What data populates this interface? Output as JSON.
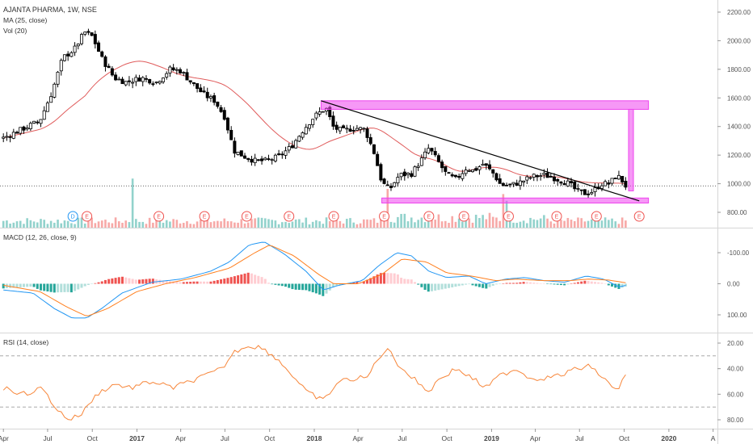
{
  "header": {
    "symbol": "AJANTA PHARMA, 1W, NSE",
    "ma_label": "MA (25, close)",
    "vol_label": "Vol (20)",
    "macd_label": "MACD (12, 26, close, 9)",
    "rsi_label": "RSI (14, close)"
  },
  "colors": {
    "up": "#26a69a",
    "down": "#ef5350",
    "candle": "#000000",
    "ma": "#e05c5c",
    "macd": "#2196f3",
    "signal": "#ff7f1e",
    "rsi": "#f7863a",
    "rsi_band": "#f0e3ff",
    "drawing": "#ee44ee",
    "trendline": "#000000"
  },
  "chart_data": [
    {
      "type": "candlestick",
      "title": "AJANTA PHARMA, 1W, NSE",
      "price_axis": {
        "ticks": [
          800,
          1000,
          1200,
          1400,
          1600,
          1800,
          2000,
          2200
        ],
        "labels": [
          "800.00",
          "1000.00",
          "1200.00",
          "1400.00",
          "1600.00",
          "1800.00",
          "2000.00",
          "2200.00"
        ],
        "ylim": [
          680,
          2220
        ]
      },
      "time_axis": {
        "labels": [
          "Apr",
          "Jul",
          "Oct",
          "2017",
          "Apr",
          "Jul",
          "Oct",
          "2018",
          "Apr",
          "Jul",
          "Oct",
          "2019",
          "Apr",
          "Jul",
          "Oct",
          "2020",
          "A"
        ],
        "bold": [
          "2017",
          "2018",
          "2019",
          "2020"
        ]
      },
      "close_anchors": [
        [
          "2016-04-01",
          1320
        ],
        [
          "2016-05-15",
          1390
        ],
        [
          "2016-06-15",
          1440
        ],
        [
          "2016-07-10",
          1640
        ],
        [
          "2016-08-01",
          1880
        ],
        [
          "2016-08-25",
          1940
        ],
        [
          "2016-09-15",
          2060
        ],
        [
          "2016-10-01",
          2030
        ],
        [
          "2016-10-20",
          1880
        ],
        [
          "2016-11-15",
          1740
        ],
        [
          "2016-12-10",
          1710
        ],
        [
          "2017-01-10",
          1740
        ],
        [
          "2017-02-10",
          1710
        ],
        [
          "2017-03-10",
          1800
        ],
        [
          "2017-04-01",
          1790
        ],
        [
          "2017-04-25",
          1700
        ],
        [
          "2017-05-20",
          1620
        ],
        [
          "2017-06-10",
          1580
        ],
        [
          "2017-06-30",
          1470
        ],
        [
          "2017-07-20",
          1230
        ],
        [
          "2017-08-10",
          1190
        ],
        [
          "2017-09-01",
          1160
        ],
        [
          "2017-09-25",
          1160
        ],
        [
          "2017-10-20",
          1190
        ],
        [
          "2017-11-15",
          1260
        ],
        [
          "2017-12-10",
          1380
        ],
        [
          "2018-01-01",
          1470
        ],
        [
          "2018-01-25",
          1530
        ],
        [
          "2018-02-10",
          1390
        ],
        [
          "2018-03-01",
          1370
        ],
        [
          "2018-03-25",
          1390
        ],
        [
          "2018-04-15",
          1380
        ],
        [
          "2018-05-05",
          1210
        ],
        [
          "2018-05-20",
          1010
        ],
        [
          "2018-06-05",
          960
        ],
        [
          "2018-06-25",
          1060
        ],
        [
          "2018-07-20",
          1070
        ],
        [
          "2018-08-10",
          1170
        ],
        [
          "2018-08-25",
          1250
        ],
        [
          "2018-09-10",
          1170
        ],
        [
          "2018-10-01",
          1060
        ],
        [
          "2018-10-20",
          1030
        ],
        [
          "2018-11-10",
          1110
        ],
        [
          "2018-11-25",
          1090
        ],
        [
          "2018-12-15",
          1140
        ],
        [
          "2019-01-05",
          1070
        ],
        [
          "2019-01-20",
          990
        ],
        [
          "2019-02-10",
          990
        ],
        [
          "2019-03-01",
          1010
        ],
        [
          "2019-03-25",
          1050
        ],
        [
          "2019-04-20",
          1060
        ],
        [
          "2019-05-10",
          1040
        ],
        [
          "2019-05-25",
          1020
        ],
        [
          "2019-06-10",
          1000
        ],
        [
          "2019-06-25",
          950
        ],
        [
          "2019-07-15",
          930
        ],
        [
          "2019-07-30",
          950
        ],
        [
          "2019-08-15",
          1000
        ],
        [
          "2019-09-01",
          1000
        ],
        [
          "2019-09-15",
          1060
        ],
        [
          "2019-09-25",
          1030
        ],
        [
          "2019-10-05",
          980
        ]
      ],
      "current_price_level": 985,
      "volume_spikes": [
        [
          "2016-12-20",
          3.8
        ],
        [
          "2018-05-30",
          2.0
        ],
        [
          "2019-01-25",
          2.0
        ],
        [
          "2019-02-01",
          1.6
        ]
      ],
      "earnings_markers": [
        {
          "date": "2016-08-22",
          "label": "D"
        },
        {
          "date": "2016-09-20",
          "label": "E"
        },
        {
          "date": "2017-02-15",
          "label": "E"
        },
        {
          "date": "2017-05-20",
          "label": "E"
        },
        {
          "date": "2017-08-15",
          "label": "E"
        },
        {
          "date": "2017-11-10",
          "label": "E"
        },
        {
          "date": "2018-02-10",
          "label": "E"
        },
        {
          "date": "2018-05-25",
          "label": "E"
        },
        {
          "date": "2018-08-25",
          "label": "E"
        },
        {
          "date": "2018-11-05",
          "label": "E"
        },
        {
          "date": "2019-02-05",
          "label": "E"
        },
        {
          "date": "2019-05-15",
          "label": "E"
        },
        {
          "date": "2019-08-05",
          "label": "E"
        },
        {
          "date": "2019-11-01",
          "label": "E"
        }
      ],
      "drawings": {
        "upper_band": {
          "date_start": "2018-01-15",
          "date_end": "2019-11-20",
          "top": 1580,
          "bottom": 1520
        },
        "lower_band": {
          "date_start": "2018-05-20",
          "date_end": "2019-11-20",
          "top": 900,
          "bottom": 865
        },
        "vertical_bar": {
          "date_start": "2019-10-10",
          "date_end": "2019-10-20",
          "top": 1520,
          "bottom": 950
        },
        "trendline": {
          "from": [
            "2018-01-15",
            1580
          ],
          "to": [
            "2019-11-01",
            880
          ]
        }
      }
    },
    {
      "type": "line",
      "title": "MACD (12, 26, close, 9)",
      "ticks": [
        100,
        0,
        -100
      ],
      "tick_labels": [
        "100.00",
        "0.00",
        "-100.00"
      ],
      "ylim": [
        -160,
        160
      ],
      "macd_anchors": [
        [
          "2016-04-01",
          20
        ],
        [
          "2016-06-01",
          30
        ],
        [
          "2016-07-15",
          80
        ],
        [
          "2016-08-20",
          110
        ],
        [
          "2016-09-20",
          110
        ],
        [
          "2016-10-20",
          80
        ],
        [
          "2016-12-01",
          30
        ],
        [
          "2017-02-01",
          -5
        ],
        [
          "2017-04-01",
          -15
        ],
        [
          "2017-06-01",
          -40
        ],
        [
          "2017-07-10",
          -70
        ],
        [
          "2017-08-20",
          -125
        ],
        [
          "2017-09-20",
          -135
        ],
        [
          "2017-11-01",
          -95
        ],
        [
          "2017-12-15",
          -40
        ],
        [
          "2018-01-20",
          20
        ],
        [
          "2018-02-20",
          5
        ],
        [
          "2018-04-10",
          -10
        ],
        [
          "2018-05-15",
          -60
        ],
        [
          "2018-06-20",
          -100
        ],
        [
          "2018-07-20",
          -90
        ],
        [
          "2018-08-25",
          -40
        ],
        [
          "2018-10-01",
          -20
        ],
        [
          "2018-11-15",
          -25
        ],
        [
          "2018-12-20",
          0
        ],
        [
          "2019-01-30",
          -15
        ],
        [
          "2019-03-10",
          -20
        ],
        [
          "2019-04-20",
          -10
        ],
        [
          "2019-06-01",
          -5
        ],
        [
          "2019-07-15",
          -25
        ],
        [
          "2019-08-20",
          -15
        ],
        [
          "2019-09-20",
          10
        ],
        [
          "2019-10-05",
          5
        ]
      ],
      "signal_anchors": [
        [
          "2016-04-01",
          5
        ],
        [
          "2016-06-15",
          25
        ],
        [
          "2016-08-10",
          75
        ],
        [
          "2016-09-20",
          105
        ],
        [
          "2016-11-01",
          80
        ],
        [
          "2017-01-01",
          25
        ],
        [
          "2017-03-01",
          0
        ],
        [
          "2017-05-01",
          -20
        ],
        [
          "2017-07-10",
          -50
        ],
        [
          "2017-09-01",
          -100
        ],
        [
          "2017-10-01",
          -125
        ],
        [
          "2017-11-20",
          -90
        ],
        [
          "2018-01-10",
          -30
        ],
        [
          "2018-02-10",
          0
        ],
        [
          "2018-04-01",
          0
        ],
        [
          "2018-05-20",
          -30
        ],
        [
          "2018-07-01",
          -80
        ],
        [
          "2018-08-20",
          -70
        ],
        [
          "2018-10-01",
          -35
        ],
        [
          "2018-11-20",
          -25
        ],
        [
          "2019-01-10",
          -10
        ],
        [
          "2019-02-20",
          -15
        ],
        [
          "2019-04-20",
          -10
        ],
        [
          "2019-06-10",
          -10
        ],
        [
          "2019-07-20",
          -15
        ],
        [
          "2019-08-30",
          -12
        ],
        [
          "2019-10-05",
          -3
        ]
      ]
    },
    {
      "type": "line",
      "title": "RSI (14, close)",
      "ticks": [
        80,
        60,
        40,
        20
      ],
      "tick_labels": [
        "80.00",
        "60.00",
        "40.00",
        "20.00"
      ],
      "band": [
        30,
        70
      ],
      "ylim": [
        15,
        85
      ],
      "rsi_anchors": [
        [
          "2016-04-01",
          55
        ],
        [
          "2016-05-15",
          60
        ],
        [
          "2016-06-20",
          55
        ],
        [
          "2016-07-20",
          72
        ],
        [
          "2016-08-15",
          80
        ],
        [
          "2016-09-10",
          75
        ],
        [
          "2016-10-10",
          60
        ],
        [
          "2016-11-15",
          52
        ],
        [
          "2016-12-20",
          55
        ],
        [
          "2017-02-01",
          50
        ],
        [
          "2017-03-15",
          55
        ],
        [
          "2017-04-20",
          50
        ],
        [
          "2017-05-25",
          45
        ],
        [
          "2017-06-25",
          40
        ],
        [
          "2017-07-20",
          27
        ],
        [
          "2017-08-15",
          22
        ],
        [
          "2017-09-10",
          23
        ],
        [
          "2017-10-10",
          30
        ],
        [
          "2017-11-10",
          42
        ],
        [
          "2017-12-15",
          58
        ],
        [
          "2018-01-20",
          65
        ],
        [
          "2018-02-20",
          50
        ],
        [
          "2018-03-20",
          48
        ],
        [
          "2018-04-20",
          47
        ],
        [
          "2018-05-15",
          30
        ],
        [
          "2018-06-05",
          25
        ],
        [
          "2018-06-25",
          38
        ],
        [
          "2018-07-25",
          48
        ],
        [
          "2018-08-25",
          58
        ],
        [
          "2018-09-15",
          48
        ],
        [
          "2018-10-20",
          40
        ],
        [
          "2018-11-20",
          47
        ],
        [
          "2018-12-20",
          55
        ],
        [
          "2019-01-20",
          45
        ],
        [
          "2019-02-20",
          40
        ],
        [
          "2019-03-25",
          48
        ],
        [
          "2019-04-25",
          47
        ],
        [
          "2019-05-25",
          45
        ],
        [
          "2019-06-25",
          40
        ],
        [
          "2019-07-25",
          38
        ],
        [
          "2019-08-25",
          50
        ],
        [
          "2019-09-15",
          57
        ],
        [
          "2019-10-05",
          45
        ]
      ]
    }
  ]
}
